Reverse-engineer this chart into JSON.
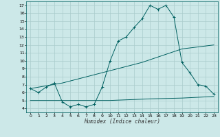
{
  "xlabel": "Humidex (Indice chaleur)",
  "bg_color": "#cce8e8",
  "grid_color": "#aacccc",
  "line_color": "#006060",
  "xlim": [
    -0.5,
    23.5
  ],
  "ylim": [
    3.5,
    17.5
  ],
  "xticks": [
    0,
    1,
    2,
    3,
    4,
    5,
    6,
    7,
    8,
    9,
    10,
    11,
    12,
    13,
    14,
    15,
    16,
    17,
    18,
    19,
    20,
    21,
    22,
    23
  ],
  "yticks": [
    4,
    5,
    6,
    7,
    8,
    9,
    10,
    11,
    12,
    13,
    14,
    15,
    16,
    17
  ],
  "curve1_x": [
    0,
    1,
    2,
    3,
    4,
    5,
    6,
    7,
    8,
    9,
    10,
    11,
    12,
    13,
    14,
    15,
    16,
    17,
    18,
    19,
    20,
    21,
    22,
    23
  ],
  "curve1_y": [
    6.5,
    6.0,
    6.7,
    7.2,
    4.8,
    4.2,
    4.5,
    4.2,
    4.5,
    6.7,
    10.0,
    12.5,
    13.0,
    14.2,
    15.3,
    17.0,
    16.5,
    17.0,
    15.5,
    9.8,
    8.5,
    7.0,
    6.8,
    5.8
  ],
  "curve2_x": [
    0,
    4,
    9,
    14,
    19,
    23
  ],
  "curve2_y": [
    6.5,
    7.2,
    8.5,
    9.8,
    11.5,
    12.0
  ],
  "curve3_x": [
    0,
    5,
    10,
    15,
    19,
    23
  ],
  "curve3_y": [
    5.0,
    5.0,
    5.0,
    5.2,
    5.3,
    5.5
  ]
}
